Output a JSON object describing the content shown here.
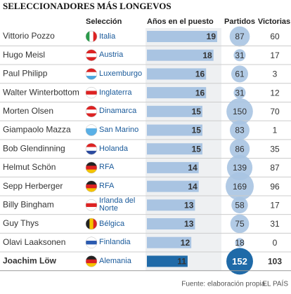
{
  "chart_data": {
    "type": "bar",
    "title": "SELECCIONADORES MÁS LONGEVOS",
    "team_header": "Selección",
    "categories": [
      "Vittorio Pozzo",
      "Hugo Meisl",
      "Paul Philipp",
      "Walter Winterbottom",
      "Morten Olsen",
      "Giampaolo Mazza",
      "Bob Glendinning",
      "Helmut Schön",
      "Sepp Herberger",
      "Billy Bingham",
      "Guy Thys",
      "Olavi Laaksonen",
      "Joachim Löw"
    ],
    "teams": [
      "Italia",
      "Austria",
      "Luxemburgo",
      "Inglaterra",
      "Dinamarca",
      "San Marino",
      "Holanda",
      "RFA",
      "RFA",
      "Irlanda del Norte",
      "Bélgica",
      "Finlandia",
      "Alemania"
    ],
    "series": [
      {
        "name": "Años en el puesto",
        "color": "#a9c4e2",
        "values": [
          19,
          18,
          16,
          16,
          15,
          15,
          15,
          14,
          14,
          13,
          13,
          12,
          11
        ]
      },
      {
        "name": "Partidos",
        "color": "#a9c4e2",
        "values": [
          87,
          31,
          61,
          31,
          150,
          83,
          86,
          139,
          169,
          58,
          75,
          18,
          152
        ]
      },
      {
        "name": "Victorias",
        "values": [
          60,
          17,
          3,
          12,
          70,
          1,
          35,
          87,
          96,
          17,
          31,
          0,
          103
        ]
      }
    ],
    "highlight_color": "#1f6aa8",
    "source": "Fuente: elaboración propia.",
    "credit": "EL PAÍS"
  }
}
